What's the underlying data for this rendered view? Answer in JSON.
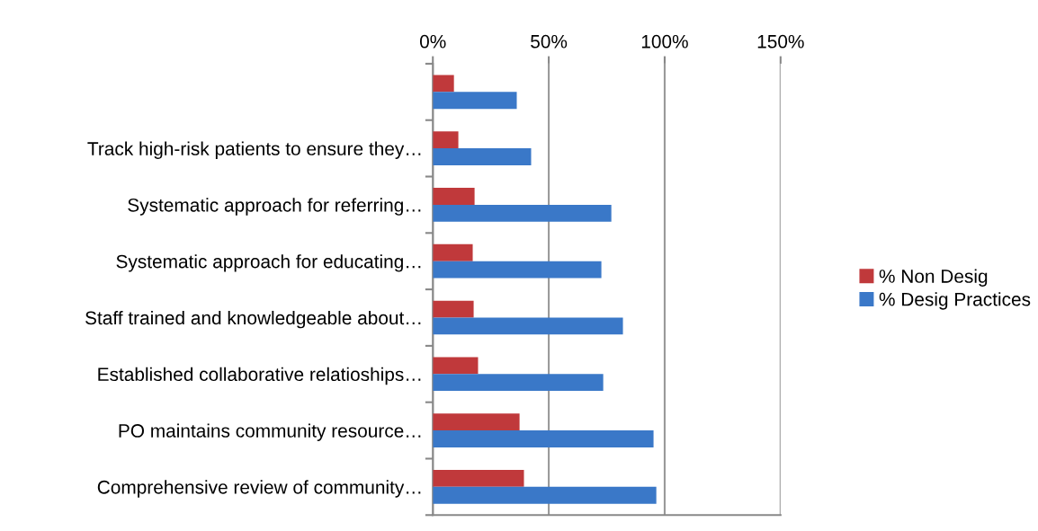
{
  "chart_data": {
    "type": "bar",
    "orientation": "horizontal",
    "categories": [
      null,
      "Track high-risk patients to ensure they…",
      "Systematic approach for referring…",
      "Systematic approach for educating…",
      "Staff trained and knowledgeable about…",
      "Established collaborative relatioships…",
      "PO maintains community resource…",
      "Comprehensive review of community…"
    ],
    "series": [
      {
        "name": "% Non Desig",
        "color": "#c0393b",
        "values": [
          9.1,
          11,
          18,
          17.2,
          17.6,
          19.5,
          37.4,
          39.3
        ]
      },
      {
        "name": "% Desig Practices",
        "color": "#3a78c8",
        "values": [
          36.2,
          42.4,
          77,
          72.7,
          82,
          73.5,
          95.2,
          96.4
        ]
      }
    ],
    "xlim": [
      0,
      150
    ],
    "xticks": [
      {
        "value": 0,
        "label": "0%"
      },
      {
        "value": 50,
        "label": "50%"
      },
      {
        "value": 100,
        "label": "100%"
      },
      {
        "value": 150,
        "label": "150%"
      }
    ],
    "grid": "x",
    "legend": "right"
  }
}
